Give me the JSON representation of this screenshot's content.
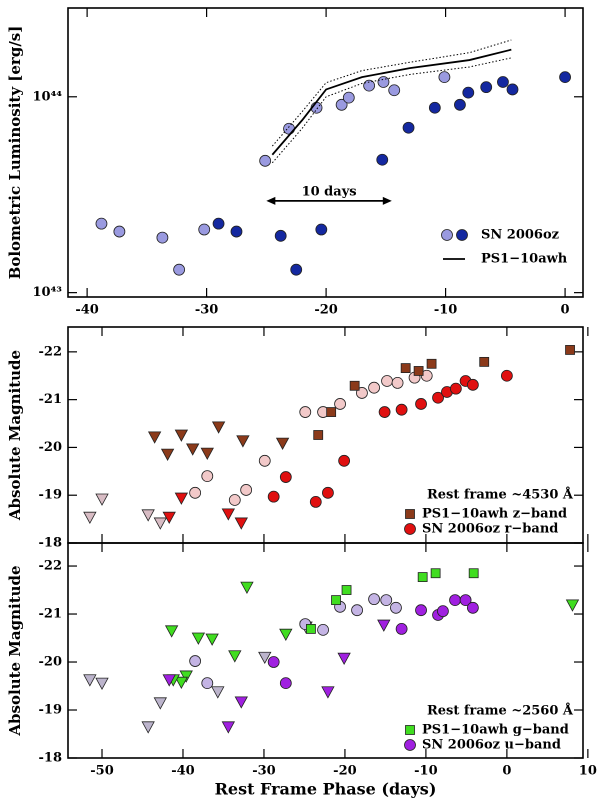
{
  "chart_data": [
    {
      "type": "scatter",
      "ylabel": "Bolometric Luminosity [erg/s]",
      "ylog": true,
      "xlim": [
        -41.6,
        1.5
      ],
      "xticks": [
        -40,
        -30,
        -20,
        -10,
        0
      ],
      "ylim": [
        9.5e+42,
        2.84e+44
      ],
      "yticks": [
        {
          "value": 1e+43,
          "label": "10⁴³"
        },
        {
          "value": 1e+44,
          "label": "10⁴⁴"
        }
      ],
      "legend": "lower right",
      "series": [
        {
          "name": "SN 2006oz",
          "color": "#9a9ae0",
          "marker": "o",
          "x": [
            -38.8,
            -37.3,
            -33.7,
            -32.3,
            -30.2,
            -25.1,
            -23.1,
            -20.8,
            -18.7,
            -18.1,
            -16.4,
            -15.2,
            -14.3,
            -10.1
          ],
          "values": [
            2.25e+43,
            2.05e+43,
            1.91e+43,
            1.31e+43,
            2.1e+43,
            4.71e+43,
            6.87e+43,
            8.79e+43,
            9.1e+43,
            9.9e+43,
            1.14e+44,
            1.19e+44,
            1.08e+44,
            1.26e+44
          ]
        },
        {
          "name": "SN 2006oz",
          "color": "#1428a0",
          "marker": "o",
          "x": [
            -29,
            -27.5,
            -23.8,
            -22.5,
            -20.4,
            -15.3,
            -13.1,
            -10.9,
            -8.8,
            -8.1,
            -6.6,
            -5.2,
            -4.4,
            0
          ],
          "values": [
            2.25e+43,
            2.05e+43,
            1.95e+43,
            1.31e+43,
            2.1e+43,
            4.77e+43,
            6.95e+43,
            8.79e+43,
            9.1e+43,
            1.05e+44,
            1.12e+44,
            1.19e+44,
            1.09e+44,
            1.26e+44
          ]
        },
        {
          "name": "PS1−10awh",
          "color": "#000000",
          "marker": "line",
          "x": [
            -24.5,
            -22,
            -20,
            -17,
            -13,
            -8,
            -4.5
          ],
          "values": [
            5.06e+43,
            7.6e+43,
            1.09e+44,
            1.26e+44,
            1.4e+44,
            1.54e+44,
            1.74e+44
          ],
          "upper": [
            5.6e+43,
            8.4e+43,
            1.18e+44,
            1.36e+44,
            1.5e+44,
            1.68e+44,
            1.95e+44
          ],
          "lower": [
            4.6e+43,
            6.9e+43,
            1e+44,
            1.17e+44,
            1.3e+44,
            1.42e+44,
            1.58e+44
          ]
        }
      ],
      "annotation": {
        "text": "10 days",
        "x": [
          -25,
          -14.5
        ],
        "y": 2.94e+43
      }
    },
    {
      "type": "scatter",
      "ylabel": "Absolute Magnitude",
      "xlim": [
        -54.2,
        9.4
      ],
      "xticks": [
        -50,
        -40,
        -30,
        -20,
        -10,
        0,
        10
      ],
      "xtick_labels": false,
      "ylim": [
        -18,
        -22.52
      ],
      "yticks": [
        -18,
        -19,
        -20,
        -21,
        -22
      ],
      "legend": "lower right",
      "legend_title": "Rest frame ~4530 Å",
      "series": [
        {
          "color": "#d8bcc4",
          "marker": "v",
          "x": [
            -51.5,
            -50,
            -44.3,
            -42.8
          ],
          "values": [
            -18.54,
            -18.92,
            -18.59,
            -18.42
          ]
        },
        {
          "color": "#f2c9c9",
          "marker": "o",
          "x": [
            -38.5,
            -37,
            -33.6,
            -32.2,
            -29.9,
            -24.9,
            -22.7,
            -20.6,
            -17.9,
            -16.4,
            -14.8,
            -13.5,
            -11.4,
            -9.9
          ],
          "values": [
            -19.05,
            -19.4,
            -18.9,
            -19.11,
            -19.72,
            -20.74,
            -20.74,
            -20.91,
            -21.14,
            -21.25,
            -21.39,
            -21.35,
            -21.46,
            -21.5
          ]
        },
        {
          "color": "#8b3a1a",
          "marker": "v",
          "x": [
            -43.5,
            -41.9,
            -40.2,
            -38.8,
            -37,
            -35.6,
            -32.6,
            -27.7
          ],
          "values": [
            -20.22,
            -19.86,
            -20.26,
            -19.97,
            -19.88,
            -20.43,
            -20.14,
            -20.09
          ]
        },
        {
          "color": "#e01010",
          "marker": "v",
          "x": [
            -41.7,
            -40.2,
            -34.4,
            -32.8
          ],
          "values": [
            -18.54,
            -18.94,
            -18.61,
            -18.42
          ]
        },
        {
          "name": "PS1−10awh z−band",
          "color": "#8b3a1a",
          "marker": "s",
          "x": [
            -23.3,
            -21.7,
            -18.8,
            -12.5,
            -10.9,
            -9.3,
            -2.8,
            7.8
          ],
          "values": [
            -20.26,
            -20.74,
            -21.29,
            -21.66,
            -21.6,
            -21.75,
            -21.79,
            -22.04
          ]
        },
        {
          "name": "SN 2006oz r−band",
          "color": "#e01010",
          "marker": "o",
          "x": [
            -28.8,
            -27.3,
            -23.6,
            -22.1,
            -20.1,
            -15.1,
            -13,
            -10.6,
            -8.5,
            -7.4,
            -6.3,
            -5.1,
            -4.2,
            0
          ],
          "values": [
            -18.97,
            -19.38,
            -18.86,
            -19.05,
            -19.72,
            -20.74,
            -20.79,
            -20.91,
            -21.04,
            -21.16,
            -21.23,
            -21.39,
            -21.31,
            -21.5
          ]
        }
      ]
    },
    {
      "type": "scatter",
      "ylabel": "Absolute Magnitude",
      "xlabel": "Rest Frame Phase (days)",
      "xlim": [
        -54.2,
        9.4
      ],
      "xticks": [
        -50,
        -40,
        -30,
        -20,
        -10,
        0,
        10
      ],
      "ylim": [
        -18,
        -22.48
      ],
      "yticks": [
        -18,
        -19,
        -20,
        -21,
        -22
      ],
      "legend": "lower right",
      "legend_title": "Rest frame ~2560 Å",
      "series": [
        {
          "color": "#bcb4cc",
          "marker": "v",
          "x": [
            -51.5,
            -50,
            -44.3,
            -42.8,
            -35.7,
            -29.9,
            -24.8
          ],
          "values": [
            -19.63,
            -19.56,
            -18.65,
            -19.15,
            -19.38,
            -20.1,
            -20.73
          ]
        },
        {
          "color": "#c4b4e4",
          "marker": "o",
          "x": [
            -38.5,
            -37,
            -24.9,
            -22.7,
            -20.6,
            -18.5,
            -16.4,
            -14.9,
            -13.7
          ],
          "values": [
            -20.02,
            -19.56,
            -20.79,
            -20.67,
            -21.15,
            -21.08,
            -21.31,
            -21.29,
            -21.13
          ]
        },
        {
          "color": "#40dd20",
          "marker": "v",
          "x": [
            -32.1,
            -41.4,
            -38.1,
            -36.4,
            -33.6,
            -27.3,
            -39.6,
            -40.2,
            -41.2,
            8.1
          ],
          "values": [
            -21.56,
            -20.65,
            -20.5,
            -20.48,
            -20.13,
            -20.58,
            -19.71,
            -19.58,
            -19.63,
            -21.19
          ]
        },
        {
          "color": "#a020e0",
          "marker": "v",
          "x": [
            -41.7,
            -34.4,
            -32.8,
            -22.1,
            -20.1,
            -15.2
          ],
          "values": [
            -19.63,
            -18.65,
            -19.17,
            -19.38,
            -20.08,
            -20.77
          ]
        },
        {
          "name": "PS1−10awh g−band",
          "color": "#40dd20",
          "marker": "s",
          "x": [
            -24.2,
            -21.1,
            -19.8,
            -10.4,
            -8.8,
            -4.1
          ],
          "values": [
            -20.69,
            -21.29,
            -21.5,
            -21.77,
            -21.85,
            -21.85
          ]
        },
        {
          "name": "SN 2006oz u−band",
          "color": "#a020e0",
          "marker": "o",
          "x": [
            -28.8,
            -27.3,
            -13,
            -10.6,
            -8.5,
            -7.9,
            -6.4,
            -5.1,
            -4.2
          ],
          "values": [
            -20,
            -19.56,
            -20.69,
            -21.08,
            -20.98,
            -21.06,
            -21.29,
            -21.29,
            -21.13
          ]
        }
      ]
    }
  ]
}
